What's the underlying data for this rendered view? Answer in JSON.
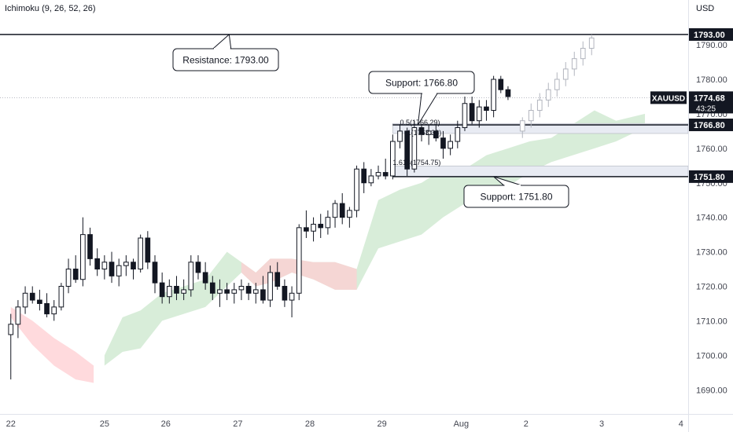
{
  "indicator_label": "Ichimoku (9, 26, 52, 26)",
  "currency": "USD",
  "symbol": "XAUUSD",
  "countdown": "43:25",
  "colors": {
    "bull_candle": "#ffffff",
    "bear_candle": "#131722",
    "cloud_bull": "#c8e6c9",
    "cloud_bear": "#ffcdd2",
    "zone_fill": "#e8ebf3",
    "level_line": "#131722",
    "axis_text": "#434651"
  },
  "chart_data": {
    "type": "candlestick",
    "title": "",
    "xlabel": "",
    "ylabel": "",
    "ylim": [
      1683,
      1803
    ],
    "y_ticks": [
      1690,
      1700,
      1710,
      1720,
      1730,
      1740,
      1750,
      1760,
      1770,
      1780,
      1790
    ],
    "y_tick_labels": [
      "1690.00",
      "1700.00",
      "1710.00",
      "1720.00",
      "1730.00",
      "1740.00",
      "1750.00",
      "1760.00",
      "1770.00",
      "1780.00",
      "1790.00"
    ],
    "x_ticks": [
      "22",
      "25",
      "26",
      "27",
      "28",
      "29",
      "Aug",
      "2",
      "3",
      "4"
    ],
    "x_tick_positions": [
      0,
      13,
      21.5,
      31.5,
      41.5,
      51.5,
      62.5,
      71.5,
      82,
      93
    ],
    "x_range": [
      -1.5,
      94
    ],
    "ohlc_note": "[open, high, low, close]",
    "candles": [
      [
        1706,
        1712,
        1693,
        1709
      ],
      [
        1709,
        1716,
        1705,
        1714
      ],
      [
        1714,
        1720,
        1712,
        1718
      ],
      [
        1718,
        1720,
        1715,
        1716
      ],
      [
        1716,
        1719,
        1713,
        1715
      ],
      [
        1715,
        1718,
        1711,
        1712
      ],
      [
        1712,
        1716,
        1710,
        1714
      ],
      [
        1714,
        1721,
        1713,
        1720
      ],
      [
        1720,
        1728,
        1718,
        1725
      ],
      [
        1725,
        1729,
        1721,
        1722
      ],
      [
        1722,
        1740,
        1720,
        1735
      ],
      [
        1735,
        1737,
        1726,
        1728
      ],
      [
        1728,
        1731,
        1723,
        1725
      ],
      [
        1725,
        1729,
        1722,
        1727
      ],
      [
        1727,
        1730,
        1721,
        1723
      ],
      [
        1723,
        1728,
        1720,
        1726
      ],
      [
        1726,
        1729,
        1723,
        1727
      ],
      [
        1727,
        1728,
        1722,
        1725
      ],
      [
        1725,
        1735,
        1724,
        1734
      ],
      [
        1734,
        1736,
        1725,
        1727
      ],
      [
        1727,
        1729,
        1718,
        1721
      ],
      [
        1721,
        1724,
        1715,
        1717
      ],
      [
        1717,
        1722,
        1715,
        1720
      ],
      [
        1720,
        1723,
        1716,
        1718
      ],
      [
        1718,
        1722,
        1716,
        1719
      ],
      [
        1719,
        1729,
        1717,
        1727
      ],
      [
        1727,
        1729,
        1722,
        1724
      ],
      [
        1724,
        1727,
        1719,
        1721
      ],
      [
        1721,
        1723,
        1716,
        1718
      ],
      [
        1718,
        1722,
        1714,
        1719
      ],
      [
        1719,
        1721,
        1716,
        1718
      ],
      [
        1718,
        1721,
        1715,
        1719
      ],
      [
        1719,
        1722,
        1716,
        1720
      ],
      [
        1720,
        1721,
        1716,
        1718
      ],
      [
        1718,
        1721,
        1715,
        1719
      ],
      [
        1719,
        1723,
        1715,
        1716
      ],
      [
        1716,
        1726,
        1714,
        1724
      ],
      [
        1724,
        1727,
        1719,
        1720
      ],
      [
        1720,
        1722,
        1714,
        1716
      ],
      [
        1716,
        1720,
        1711,
        1718
      ],
      [
        1718,
        1738,
        1716,
        1737
      ],
      [
        1737,
        1742,
        1734,
        1736
      ],
      [
        1736,
        1740,
        1733,
        1738
      ],
      [
        1738,
        1741,
        1734,
        1737
      ],
      [
        1737,
        1742,
        1735,
        1740
      ],
      [
        1740,
        1745,
        1737,
        1744
      ],
      [
        1744,
        1747,
        1738,
        1740
      ],
      [
        1740,
        1743,
        1737,
        1742
      ],
      [
        1742,
        1755,
        1740,
        1754
      ],
      [
        1754,
        1756,
        1747,
        1750
      ],
      [
        1750,
        1754,
        1749,
        1752
      ],
      [
        1752,
        1755,
        1751,
        1753
      ],
      [
        1753,
        1757,
        1751,
        1752
      ],
      [
        1752,
        1764,
        1751,
        1762
      ],
      [
        1762,
        1767,
        1760,
        1765
      ],
      [
        1765,
        1766,
        1752,
        1754
      ],
      [
        1754,
        1768,
        1753,
        1766
      ],
      [
        1766,
        1767,
        1762,
        1764
      ],
      [
        1764,
        1767,
        1761,
        1765
      ],
      [
        1765,
        1767,
        1762,
        1763
      ],
      [
        1763,
        1765,
        1757,
        1760
      ],
      [
        1760,
        1764,
        1758,
        1762
      ],
      [
        1762,
        1768,
        1760,
        1766
      ],
      [
        1766,
        1775,
        1765,
        1773
      ],
      [
        1773,
        1775,
        1767,
        1768
      ],
      [
        1768,
        1774,
        1766,
        1772
      ],
      [
        1772,
        1774,
        1768,
        1771
      ],
      [
        1771,
        1781,
        1769,
        1780
      ],
      [
        1780,
        1781,
        1776,
        1777
      ],
      [
        1777,
        1778,
        1774,
        1775
      ]
    ],
    "projection_candles": [
      [
        1765,
        1769,
        1763,
        1768
      ],
      [
        1768,
        1773,
        1766,
        1771
      ],
      [
        1771,
        1776,
        1769,
        1774
      ],
      [
        1774,
        1779,
        1772,
        1777
      ],
      [
        1777,
        1782,
        1775,
        1780
      ],
      [
        1780,
        1785,
        1778,
        1783
      ],
      [
        1783,
        1788,
        1781,
        1786
      ],
      [
        1786,
        1791,
        1784,
        1789
      ],
      [
        1789,
        1793,
        1787,
        1792
      ]
    ],
    "cloud": {
      "x": [
        0,
        3,
        6,
        9,
        11.5,
        13,
        15.5,
        18,
        21,
        24,
        27,
        30,
        32,
        34,
        36,
        39,
        42,
        45,
        48,
        51,
        54,
        57,
        60,
        63,
        66,
        69,
        72,
        75,
        78,
        81,
        84,
        88
      ],
      "upper": [
        1714,
        1710,
        1705,
        1701,
        1697,
        1700,
        1711,
        1713,
        1718,
        1720,
        1722,
        1730,
        1727,
        1724,
        1728,
        1728,
        1727,
        1727,
        1725,
        1745,
        1748,
        1750,
        1754,
        1754,
        1758,
        1760,
        1762,
        1763,
        1767,
        1771,
        1768,
        1770
      ],
      "lower": [
        1711,
        1703,
        1697,
        1693,
        1692,
        1697,
        1701,
        1702,
        1710,
        1712,
        1714,
        1720,
        1724,
        1720,
        1721,
        1724,
        1722,
        1719,
        1719,
        1731,
        1733,
        1735,
        1740,
        1744,
        1746,
        1749,
        1753,
        1756,
        1758,
        1760,
        1762,
        1766
      ],
      "bull_from_index": 5,
      "bear_ranges_x": [
        [
          0,
          11.5
        ],
        [
          31,
          48.5
        ]
      ]
    },
    "horizontal_lines": [
      {
        "value": 1793.0,
        "label": "1793.00"
      },
      {
        "value": 1766.8,
        "label": "1766.80"
      },
      {
        "value": 1751.8,
        "label": "1751.80"
      }
    ],
    "current_price": {
      "value": 1774.68,
      "label": "1774.68"
    },
    "zones": [
      {
        "y_from": 1764.3,
        "y_to": 1767.2,
        "x_from": 53,
        "x_to": 94
      },
      {
        "y_from": 1751.8,
        "y_to": 1754.9,
        "x_from": 53,
        "x_to": 94
      }
    ],
    "fib_labels": [
      {
        "text": "0.5(1766.29)",
        "x": 54,
        "y": 1766.29
      },
      {
        "text": "1(1763.33)",
        "x": 55,
        "y": 1763.33
      },
      {
        "text": "1.618(1754.75)",
        "x": 53,
        "y": 1754.75
      }
    ],
    "callouts": [
      {
        "text": "Resistance: 1793.00",
        "pointer_x": 30.3,
        "pointer_y": 1793
      },
      {
        "text": "Support: 1766.80",
        "pointer_x": 56.5,
        "pointer_y": 1766.8
      },
      {
        "text": "Support: 1751.80",
        "pointer_x": 67,
        "pointer_y": 1751.8
      }
    ]
  }
}
